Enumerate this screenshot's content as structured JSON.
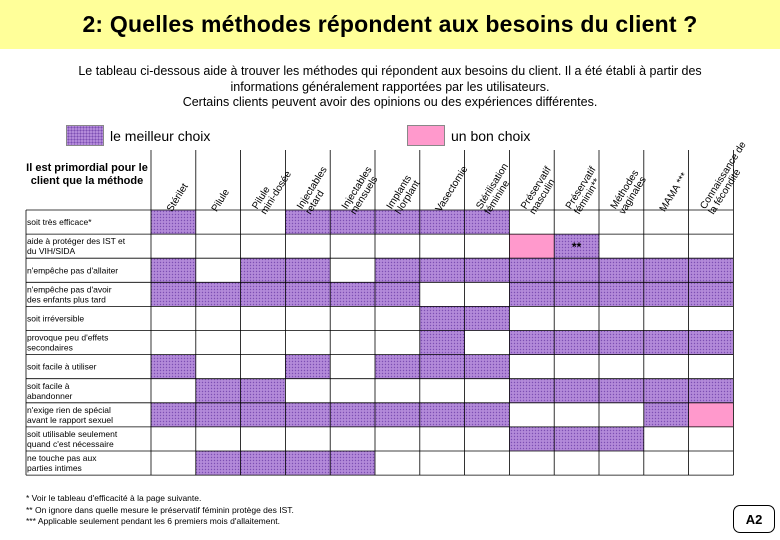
{
  "title": "2: Quelles méthodes répondent aux besoins du client ?",
  "intro_lines": [
    "Le tableau ci-dessous aide à trouver les méthodes qui répondent aux besoins du client. Il a été établi à partir des",
    "informations généralement rapportées par les utilisateurs.",
    "Certains clients peuvent avoir des opinions ou des expériences différentes."
  ],
  "legend": {
    "best_label": "le meilleur choix",
    "good_label": "un bon choix",
    "colors": {
      "best": "#b38ad9",
      "best_dots": "#7d4fb3",
      "good": "#ff99cc"
    }
  },
  "corner_label": "Il est primordial pour le client que la méthode",
  "columns": [
    [
      "Stérilet"
    ],
    [
      "Pilule"
    ],
    [
      "Pilule",
      "mini-dosée"
    ],
    [
      "Injectables",
      "retard"
    ],
    [
      "Injectables",
      "mensuels"
    ],
    [
      "Implants",
      "Norplant"
    ],
    [
      "Vasectomie"
    ],
    [
      "Stérilisation",
      "féminine"
    ],
    [
      "Préservatif",
      "masculin"
    ],
    [
      "Préservatif",
      "féminin**"
    ],
    [
      "Méthodes",
      "vaginales"
    ],
    [
      "MAMA ***"
    ],
    [
      "Connaissance de",
      "la fécondité"
    ]
  ],
  "rows": [
    {
      "label": [
        "soit très efficace*"
      ],
      "cells": [
        "B",
        "",
        "",
        "B",
        "B",
        "B",
        "B",
        "B",
        "",
        "",
        "",
        "",
        ""
      ]
    },
    {
      "label": [
        "aide à protéger des IST et",
        "du VIH/SIDA"
      ],
      "cells": [
        "",
        "",
        "",
        "",
        "",
        "",
        "",
        "",
        "G",
        "B",
        "",
        "",
        ""
      ],
      "mark": {
        "col": 9,
        "text": "**"
      }
    },
    {
      "label": [
        "n'empêche pas d'allaiter"
      ],
      "cells": [
        "B",
        "",
        "B",
        "B",
        "",
        "B",
        "B",
        "B",
        "B",
        "B",
        "B",
        "B",
        "B"
      ]
    },
    {
      "label": [
        "n'empêche pas d'avoir",
        "des enfants plus tard"
      ],
      "cells": [
        "B",
        "B",
        "B",
        "B",
        "B",
        "B",
        "",
        "",
        "B",
        "B",
        "B",
        "B",
        "B"
      ]
    },
    {
      "label": [
        "soit irréversible"
      ],
      "cells": [
        "",
        "",
        "",
        "",
        "",
        "",
        "B",
        "B",
        "",
        "",
        "",
        "",
        ""
      ]
    },
    {
      "label": [
        "provoque peu d'effets",
        "secondaires"
      ],
      "cells": [
        "",
        "",
        "",
        "",
        "",
        "",
        "B",
        "",
        "B",
        "B",
        "B",
        "B",
        "B"
      ]
    },
    {
      "label": [
        "soit facile à utiliser"
      ],
      "cells": [
        "B",
        "",
        "",
        "B",
        "",
        "B",
        "B",
        "B",
        "",
        "",
        "",
        "",
        ""
      ]
    },
    {
      "label": [
        "soit facile à",
        "abandonner"
      ],
      "cells": [
        "",
        "B",
        "B",
        "",
        "",
        "",
        "",
        "",
        "B",
        "B",
        "B",
        "B",
        "B"
      ]
    },
    {
      "label": [
        "n'exige rien de spécial",
        "avant le rapport sexuel"
      ],
      "cells": [
        "B",
        "B",
        "B",
        "B",
        "B",
        "B",
        "B",
        "B",
        "",
        "",
        "",
        "B",
        "G"
      ]
    },
    {
      "label": [
        "soit utilisable seulement",
        "quand c'est nécessaire"
      ],
      "cells": [
        "",
        "",
        "",
        "",
        "",
        "",
        "",
        "",
        "B",
        "B",
        "B",
        "",
        ""
      ]
    },
    {
      "label": [
        "ne touche pas aux",
        "parties intimes"
      ],
      "cells": [
        "",
        "B",
        "B",
        "B",
        "B",
        "",
        "",
        "",
        "",
        "",
        "",
        "",
        ""
      ]
    }
  ],
  "footnotes": [
    "* Voir le tableau d'efficacité à la page suivante.",
    "** On ignore dans quelle mesure le préservatif féminin protège des IST.",
    "*** Applicable seulement pendant les 6 premiers mois d'allaitement."
  ],
  "page_badge": "A2"
}
